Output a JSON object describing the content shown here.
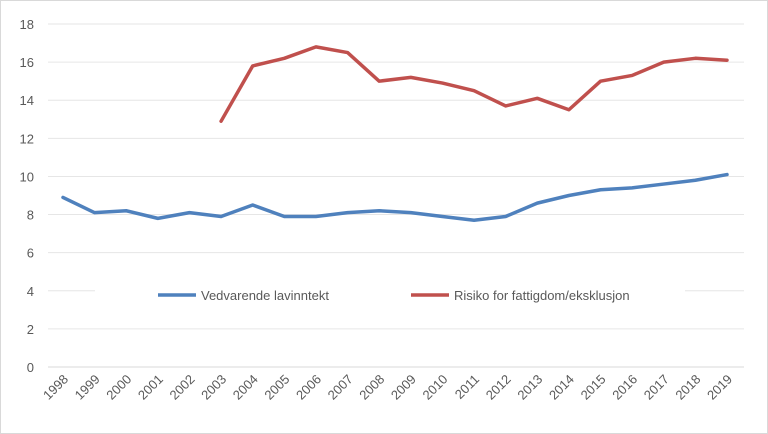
{
  "chart_data": {
    "type": "line",
    "categories": [
      "1998",
      "1999",
      "2000",
      "2001",
      "2002",
      "2003",
      "2004",
      "2005",
      "2006",
      "2007",
      "2008",
      "2009",
      "2010",
      "2011",
      "2012",
      "2013",
      "2014",
      "2015",
      "2016",
      "2017",
      "2018",
      "2019"
    ],
    "series": [
      {
        "name": "Vedvarende lavinntekt",
        "color": "#4f81bd",
        "values": [
          8.9,
          8.1,
          8.2,
          7.8,
          8.1,
          7.9,
          8.5,
          7.9,
          7.9,
          8.1,
          8.2,
          8.1,
          7.9,
          7.7,
          7.9,
          8.6,
          9.0,
          9.3,
          9.4,
          9.6,
          9.8,
          10.1
        ]
      },
      {
        "name": "Risiko for fattigdom/eksklusjon",
        "color": "#c0504d",
        "values": [
          null,
          null,
          null,
          null,
          null,
          12.9,
          15.8,
          16.2,
          16.8,
          16.5,
          15.0,
          15.2,
          14.9,
          14.5,
          13.7,
          14.1,
          13.5,
          15.0,
          15.3,
          16.0,
          16.2,
          16.1
        ]
      }
    ],
    "yticks": [
      "0",
      "2",
      "4",
      "6",
      "8",
      "10",
      "12",
      "14",
      "16",
      "18"
    ],
    "ylim": [
      0,
      18
    ],
    "grid": true,
    "legend": "inside-bottom-center",
    "title": "",
    "xlabel": "",
    "ylabel": ""
  }
}
